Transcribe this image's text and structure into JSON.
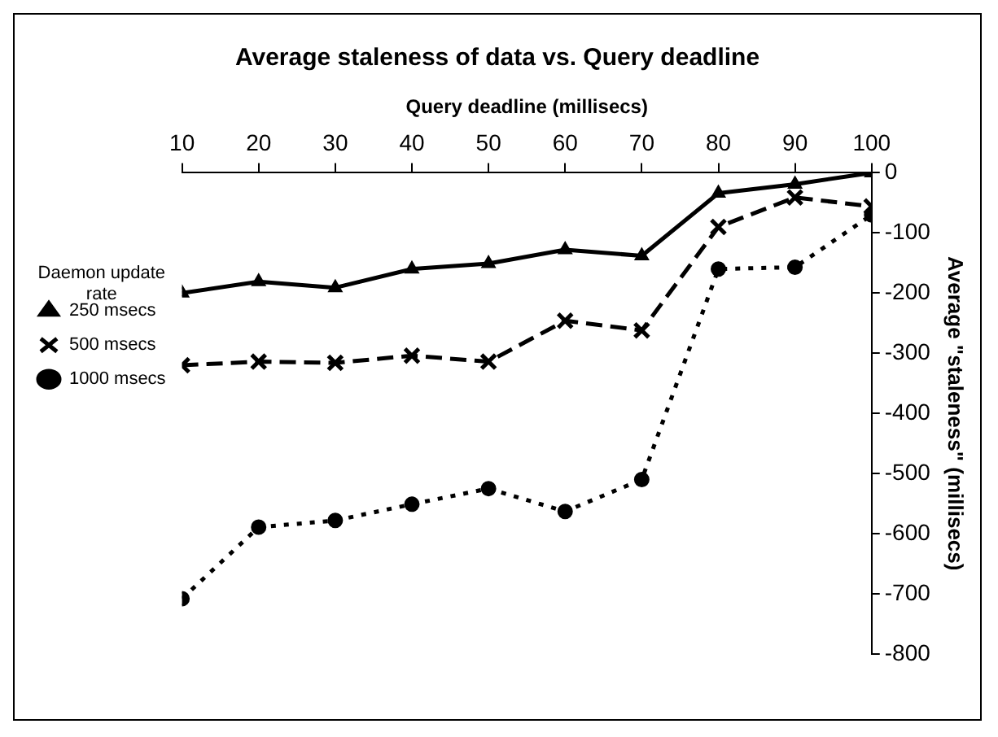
{
  "chart_data": {
    "type": "line",
    "title": "Average staleness of data vs. Query deadline",
    "xlabel": "Query deadline (millisecs)",
    "ylabel": "Average \"staleness\" (millisecs)",
    "legend_title": "Daemon update rate",
    "x": [
      10,
      20,
      30,
      40,
      50,
      60,
      70,
      80,
      90,
      100
    ],
    "xlim": [
      10,
      100
    ],
    "xticks": [
      10,
      20,
      30,
      40,
      50,
      60,
      70,
      80,
      90,
      100
    ],
    "ylim": [
      -800,
      0
    ],
    "yticks": [
      -800,
      -700,
      -600,
      -500,
      -400,
      -300,
      -200,
      -100,
      0
    ],
    "grid": false,
    "legend": "left",
    "series": [
      {
        "name": "250 msecs",
        "color": "#000000",
        "marker": "triangle",
        "line_style": "solid",
        "values": [
          -200,
          -181,
          -191,
          -160,
          -151,
          -128,
          -138,
          -34,
          -19,
          0
        ]
      },
      {
        "name": "500 msecs",
        "color": "#000000",
        "marker": "cross",
        "line_style": "dashed",
        "values": [
          -320,
          -314,
          -316,
          -304,
          -314,
          -246,
          -262,
          -90,
          -41,
          -56
        ]
      },
      {
        "name": "1000 msecs",
        "color": "#000000",
        "marker": "circle",
        "line_style": "dotted",
        "values": [
          -708,
          -589,
          -578,
          -551,
          -525,
          -563,
          -510,
          -160,
          -157,
          -70
        ]
      }
    ]
  }
}
